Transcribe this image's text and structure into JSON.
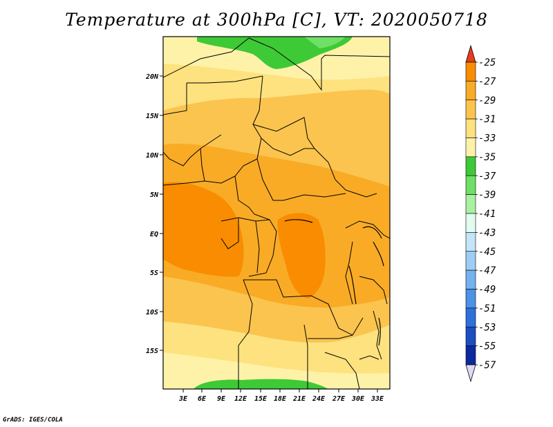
{
  "title": "Temperature at 300hPa [C], VT: 2020050718",
  "footer": "GrADS: IGES/COLA",
  "map": {
    "lon_range": [
      0,
      34
    ],
    "lat_range": [
      -20,
      24
    ],
    "lat_ticks": [
      "20N",
      "15N",
      "10N",
      "5N",
      "EQ",
      "5S",
      "10S",
      "15S"
    ],
    "lon_ticks": [
      "3E",
      "6E",
      "9E",
      "12E",
      "15E",
      "18E",
      "21E",
      "24E",
      "27E",
      "30E",
      "33E"
    ]
  },
  "colorbar": {
    "labels": [
      "-25",
      "-27",
      "-29",
      "-31",
      "-33",
      "-35",
      "-37",
      "-39",
      "-41",
      "-43",
      "-45",
      "-47",
      "-49",
      "-51",
      "-53",
      "-55",
      "-57"
    ],
    "colors": [
      "#f05a00",
      "#f98c00",
      "#f9ab26",
      "#fbc44f",
      "#fde27f",
      "#fef2a8",
      "#3ec936",
      "#6de065",
      "#a9f1a2",
      "#e0fbf0",
      "#c3e5f7",
      "#9dcdf5",
      "#74b2ef",
      "#4b92e8",
      "#2c70da",
      "#1a4fc0",
      "#0b2a9e",
      "#060b72"
    ],
    "top_arrow_color": "#e83c1a",
    "bottom_arrow_color": "#dcdcf5"
  }
}
